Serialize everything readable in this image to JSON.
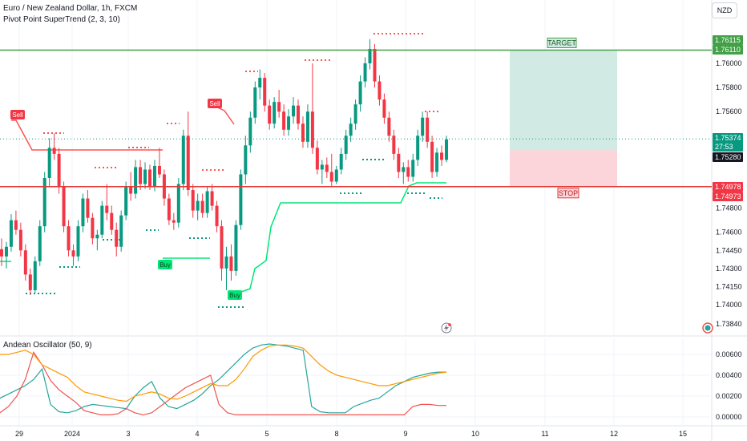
{
  "header": {
    "symbol_line": "Euro / New Zealand Dollar, 1h, FXCM",
    "indicator_line": "Pivot Point SuperTrend (2, 3, 10)",
    "currency": "NZD"
  },
  "oscillator_label": "Andean Oscillator (50, 9)",
  "colors": {
    "up": "#089981",
    "down": "#f23645",
    "trend_up": "#00e676",
    "trend_down": "#ff5252",
    "target_zone": "#d1ebe4",
    "stop_zone": "#fbd5d9",
    "bull_line": "#26a69a",
    "bear_line": "#ef5350",
    "signal_line": "#ff9800",
    "stop_line": "#e53935",
    "target_line": "#43a047"
  },
  "chart_data": [
    {
      "type": "candlestick",
      "title": "Euro / New Zealand Dollar, 1h, FXCM",
      "y_ticks": [
        "1.76000",
        "1.75800",
        "1.75600",
        "1.75374",
        "1.75280",
        "1.74978",
        "1.74973",
        "1.74800",
        "1.74600",
        "1.74450",
        "1.74300",
        "1.74150",
        "1.74000",
        "1.73840"
      ],
      "ylim": [
        1.738,
        1.763
      ],
      "x_ticks": [
        "29",
        "2024",
        "3",
        "4",
        "5",
        "8",
        "9",
        "10",
        "11",
        "12",
        "15"
      ],
      "price_tags": [
        {
          "label": "1.76115",
          "price": 1.76115,
          "kind": "target"
        },
        {
          "label": "1.76110",
          "price": 1.7611,
          "kind": "target"
        },
        {
          "label": "1.75374",
          "price": 1.75374,
          "kind": "last"
        },
        {
          "label": "27:53",
          "price": 1.7527,
          "kind": "countdown"
        },
        {
          "label": "1.75280",
          "price": 1.7528,
          "kind": "neutral"
        },
        {
          "label": "1.74978",
          "price": 1.74978,
          "kind": "stop"
        },
        {
          "label": "1.74973",
          "price": 1.74973,
          "kind": "stop"
        }
      ],
      "annotations": {
        "target_label": "TARGET",
        "stop_label": "STOP",
        "signals": [
          {
            "label": "Sell",
            "kind": "sell"
          },
          {
            "label": "Sell",
            "kind": "sell"
          },
          {
            "label": "Buy",
            "kind": "buy"
          },
          {
            "label": "Buy",
            "kind": "buy"
          }
        ]
      },
      "levels": {
        "target": 1.7611,
        "entry": 1.7528,
        "stop": 1.74978,
        "last": 1.75374
      },
      "candles_ohlc": [
        [
          1.7446,
          1.7455,
          1.7432,
          1.744
        ],
        [
          1.744,
          1.7452,
          1.743,
          1.7448
        ],
        [
          1.7448,
          1.7475,
          1.7444,
          1.747
        ],
        [
          1.747,
          1.7478,
          1.7458,
          1.7462
        ],
        [
          1.7462,
          1.7468,
          1.744,
          1.7445
        ],
        [
          1.7445,
          1.745,
          1.742,
          1.7425
        ],
        [
          1.7425,
          1.743,
          1.7408,
          1.7412
        ],
        [
          1.7412,
          1.744,
          1.741,
          1.7436
        ],
        [
          1.7436,
          1.747,
          1.7432,
          1.7465
        ],
        [
          1.7465,
          1.751,
          1.746,
          1.7505
        ],
        [
          1.7505,
          1.7538,
          1.7498,
          1.753
        ],
        [
          1.753,
          1.7542,
          1.752,
          1.7525
        ],
        [
          1.7525,
          1.753,
          1.7492,
          1.7498
        ],
        [
          1.7498,
          1.7502,
          1.746,
          1.7465
        ],
        [
          1.7465,
          1.747,
          1.744,
          1.7445
        ],
        [
          1.7445,
          1.745,
          1.7432,
          1.744
        ],
        [
          1.744,
          1.747,
          1.7436,
          1.7465
        ],
        [
          1.7465,
          1.7492,
          1.746,
          1.7488
        ],
        [
          1.7488,
          1.7495,
          1.7468,
          1.7472
        ],
        [
          1.7472,
          1.7476,
          1.745,
          1.7455
        ],
        [
          1.7455,
          1.7462,
          1.7445,
          1.7458
        ],
        [
          1.7458,
          1.7486,
          1.7455,
          1.7482
        ],
        [
          1.7482,
          1.75,
          1.747,
          1.7476
        ],
        [
          1.7476,
          1.7482,
          1.7458,
          1.7462
        ],
        [
          1.7462,
          1.7468,
          1.744,
          1.7448
        ],
        [
          1.7448,
          1.7478,
          1.7444,
          1.7474
        ],
        [
          1.7474,
          1.7502,
          1.747,
          1.7498
        ],
        [
          1.7498,
          1.751,
          1.7486,
          1.7492
        ],
        [
          1.7492,
          1.752,
          1.7488,
          1.7514
        ],
        [
          1.7514,
          1.752,
          1.7495,
          1.75
        ],
        [
          1.75,
          1.7518,
          1.7496,
          1.7512
        ],
        [
          1.7512,
          1.7516,
          1.7495,
          1.7498
        ],
        [
          1.7498,
          1.752,
          1.7494,
          1.7515
        ],
        [
          1.7515,
          1.753,
          1.7505,
          1.7508
        ],
        [
          1.7508,
          1.7512,
          1.7482,
          1.7488
        ],
        [
          1.7488,
          1.7492,
          1.7466,
          1.747
        ],
        [
          1.747,
          1.7476,
          1.7462,
          1.7468
        ],
        [
          1.7468,
          1.7505,
          1.7464,
          1.75
        ],
        [
          1.75,
          1.7545,
          1.7495,
          1.754
        ],
        [
          1.754,
          1.756,
          1.749,
          1.7495
        ],
        [
          1.7495,
          1.75,
          1.7472,
          1.7478
        ],
        [
          1.7478,
          1.7492,
          1.747,
          1.7486
        ],
        [
          1.7486,
          1.7492,
          1.7472,
          1.7476
        ],
        [
          1.7476,
          1.7498,
          1.7472,
          1.7494
        ],
        [
          1.7494,
          1.75,
          1.7478,
          1.7482
        ],
        [
          1.7482,
          1.7486,
          1.746,
          1.7465
        ],
        [
          1.7465,
          1.747,
          1.742,
          1.743
        ],
        [
          1.743,
          1.7448,
          1.7412,
          1.744
        ],
        [
          1.744,
          1.745,
          1.742,
          1.7428
        ],
        [
          1.7428,
          1.747,
          1.7424,
          1.7466
        ],
        [
          1.7466,
          1.7512,
          1.7462,
          1.7508
        ],
        [
          1.7508,
          1.754,
          1.75,
          1.7532
        ],
        [
          1.7532,
          1.756,
          1.7526,
          1.7555
        ],
        [
          1.7555,
          1.7585,
          1.755,
          1.758
        ],
        [
          1.758,
          1.7595,
          1.757,
          1.7588
        ],
        [
          1.7588,
          1.7592,
          1.756,
          1.7565
        ],
        [
          1.7565,
          1.757,
          1.7545,
          1.755
        ],
        [
          1.755,
          1.7572,
          1.7546,
          1.7568
        ],
        [
          1.7568,
          1.7578,
          1.7555,
          1.756
        ],
        [
          1.756,
          1.7566,
          1.754,
          1.7545
        ],
        [
          1.7545,
          1.7562,
          1.754,
          1.7556
        ],
        [
          1.7556,
          1.7572,
          1.755,
          1.7565
        ],
        [
          1.7565,
          1.757,
          1.7545,
          1.755
        ],
        [
          1.755,
          1.7556,
          1.753,
          1.7535
        ],
        [
          1.7535,
          1.7566,
          1.753,
          1.756
        ],
        [
          1.756,
          1.76,
          1.7525,
          1.753
        ],
        [
          1.753,
          1.7536,
          1.7508,
          1.7512
        ],
        [
          1.7512,
          1.752,
          1.75,
          1.7516
        ],
        [
          1.7516,
          1.7522,
          1.7505,
          1.751
        ],
        [
          1.751,
          1.7525,
          1.7498,
          1.7502
        ],
        [
          1.7502,
          1.7515,
          1.75,
          1.7512
        ],
        [
          1.7512,
          1.753,
          1.7508,
          1.7525
        ],
        [
          1.7525,
          1.7545,
          1.752,
          1.754
        ],
        [
          1.754,
          1.7555,
          1.7535,
          1.755
        ],
        [
          1.755,
          1.757,
          1.7545,
          1.7566
        ],
        [
          1.7566,
          1.759,
          1.756,
          1.7585
        ],
        [
          1.7585,
          1.7605,
          1.758,
          1.76
        ],
        [
          1.76,
          1.762,
          1.7595,
          1.7612
        ],
        [
          1.7612,
          1.7616,
          1.758,
          1.7585
        ],
        [
          1.7585,
          1.759,
          1.7565,
          1.757
        ],
        [
          1.757,
          1.7575,
          1.755,
          1.7555
        ],
        [
          1.7555,
          1.756,
          1.7535,
          1.754
        ],
        [
          1.754,
          1.7545,
          1.752,
          1.7525
        ],
        [
          1.7525,
          1.753,
          1.7505,
          1.751
        ],
        [
          1.751,
          1.7518,
          1.75,
          1.7514
        ],
        [
          1.7514,
          1.752,
          1.7502,
          1.7506
        ],
        [
          1.7506,
          1.7525,
          1.7502,
          1.752
        ],
        [
          1.752,
          1.7545,
          1.7515,
          1.754
        ],
        [
          1.754,
          1.756,
          1.7535,
          1.7555
        ],
        [
          1.7555,
          1.756,
          1.753,
          1.7535
        ],
        [
          1.7535,
          1.754,
          1.7505,
          1.751
        ],
        [
          1.751,
          1.753,
          1.7506,
          1.7526
        ],
        [
          1.7526,
          1.7532,
          1.7515,
          1.752
        ],
        [
          1.752,
          1.754,
          1.7518,
          1.7537
        ]
      ]
    },
    {
      "type": "line",
      "title": "Andean Oscillator (50, 9)",
      "y_ticks": [
        "0.00600",
        "0.00400",
        "0.00200",
        "0.00000"
      ],
      "ylim": [
        -0.0002,
        0.0072
      ],
      "x_ticks": [
        "29",
        "2024",
        "3",
        "4",
        "5",
        "8",
        "9",
        "10",
        "11",
        "12",
        "15"
      ],
      "series": [
        {
          "key": "bull",
          "values": [
            0.0018,
            0.0022,
            0.0026,
            0.003,
            0.0036,
            0.0046,
            0.0012,
            0.0005,
            0.0004,
            0.0006,
            0.001,
            0.0012,
            0.0011,
            0.001,
            0.0009,
            0.0008,
            0.002,
            0.0028,
            0.0034,
            0.0018,
            0.001,
            0.0008,
            0.0012,
            0.0016,
            0.0022,
            0.003,
            0.0036,
            0.0044,
            0.0052,
            0.006,
            0.0066,
            0.0069,
            0.007,
            0.0069,
            0.0068,
            0.0066,
            0.0064,
            0.001,
            0.0005,
            0.0004,
            0.0004,
            0.0004,
            0.001,
            0.0013,
            0.0016,
            0.0018,
            0.0024,
            0.003,
            0.0034,
            0.0038,
            0.004,
            0.0042,
            0.0043,
            0.0043
          ]
        },
        {
          "key": "bear",
          "values": [
            0.0004,
            0.001,
            0.002,
            0.0036,
            0.0062,
            0.005,
            0.0035,
            0.0026,
            0.002,
            0.0014,
            0.0006,
            0.0004,
            0.0002,
            0.0002,
            0.0003,
            0.0008,
            0.0004,
            0.0002,
            0.0004,
            0.001,
            0.0016,
            0.0022,
            0.0028,
            0.0032,
            0.0036,
            0.004,
            0.0012,
            0.0004,
            0.0002,
            0.0002,
            0.0002,
            0.0002,
            0.0002,
            0.0002,
            0.0002,
            0.0002,
            0.0002,
            0.0002,
            0.0002,
            0.0002,
            0.0002,
            0.0002,
            0.0002,
            0.0002,
            0.0002,
            0.0002,
            0.0002,
            0.0002,
            0.0002,
            0.001,
            0.0012,
            0.0012,
            0.0011,
            0.0011
          ]
        },
        {
          "key": "signal",
          "values": [
            0.006,
            0.006,
            0.0062,
            0.0064,
            0.006,
            0.005,
            0.0046,
            0.0042,
            0.0038,
            0.003,
            0.0024,
            0.0022,
            0.002,
            0.0018,
            0.0016,
            0.0015,
            0.002,
            0.0022,
            0.0024,
            0.0022,
            0.0018,
            0.0017,
            0.002,
            0.0024,
            0.0028,
            0.0032,
            0.003,
            0.003,
            0.0036,
            0.0046,
            0.0058,
            0.0064,
            0.0068,
            0.0069,
            0.0069,
            0.0068,
            0.0066,
            0.0058,
            0.005,
            0.0044,
            0.004,
            0.0038,
            0.0036,
            0.0034,
            0.0032,
            0.003,
            0.003,
            0.0032,
            0.0034,
            0.0036,
            0.0038,
            0.004,
            0.0042,
            0.0043
          ]
        }
      ]
    }
  ]
}
